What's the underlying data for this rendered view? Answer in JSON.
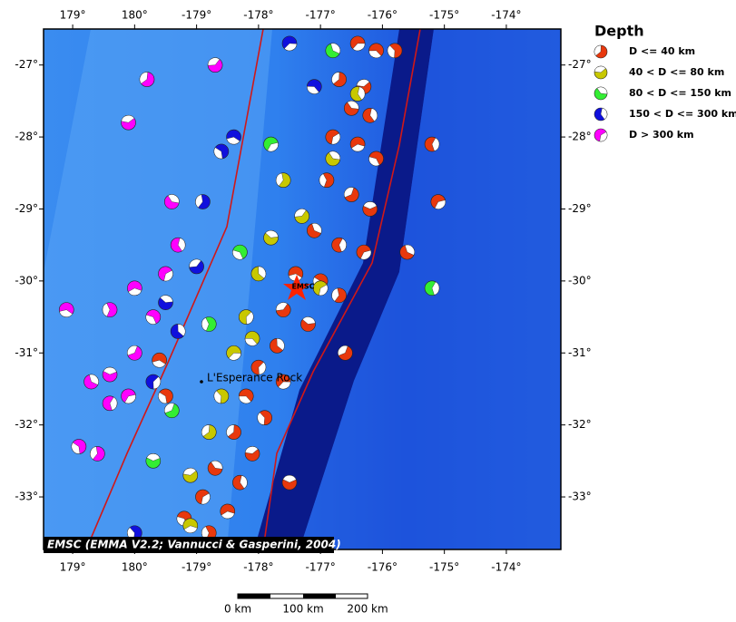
{
  "map": {
    "lonlim": [
      178.53,
      186.88
    ],
    "latlim": [
      -26.5,
      -33.73
    ],
    "lonticks": [
      {
        "value": 179,
        "label": "179°"
      },
      {
        "value": 180,
        "label": "180°"
      },
      {
        "value": 181,
        "label": "-179°"
      },
      {
        "value": 182,
        "label": "-178°"
      },
      {
        "value": 183,
        "label": "-177°"
      },
      {
        "value": 184,
        "label": "-176°"
      },
      {
        "value": 185,
        "label": "-175°"
      },
      {
        "value": 186,
        "label": "-174°"
      }
    ],
    "latticks": [
      {
        "value": -27,
        "label": "-27°"
      },
      {
        "value": -28,
        "label": "-28°"
      },
      {
        "value": -29,
        "label": "-29°"
      },
      {
        "value": -30,
        "label": "-30°"
      },
      {
        "value": -31,
        "label": "-31°"
      },
      {
        "value": -32,
        "label": "-32°"
      },
      {
        "value": -33,
        "label": "-33°"
      }
    ],
    "events": [
      [
        183.6,
        -26.7,
        0
      ],
      [
        183.9,
        -26.8,
        0
      ],
      [
        184.2,
        -26.8,
        0
      ],
      [
        183.3,
        -27.2,
        0
      ],
      [
        183.7,
        -27.3,
        0
      ],
      [
        183.5,
        -27.6,
        0
      ],
      [
        183.8,
        -27.7,
        0
      ],
      [
        183.2,
        -28.0,
        0
      ],
      [
        183.6,
        -28.1,
        0
      ],
      [
        183.9,
        -28.3,
        0
      ],
      [
        183.1,
        -28.6,
        0
      ],
      [
        183.5,
        -28.8,
        0
      ],
      [
        183.8,
        -29.0,
        0
      ],
      [
        182.9,
        -29.3,
        0
      ],
      [
        183.3,
        -29.5,
        0
      ],
      [
        183.7,
        -29.6,
        0
      ],
      [
        182.6,
        -29.9,
        0
      ],
      [
        183.0,
        -30.0,
        0
      ],
      [
        183.3,
        -30.2,
        0
      ],
      [
        182.4,
        -30.4,
        0
      ],
      [
        182.8,
        -30.6,
        0
      ],
      [
        182.3,
        -30.9,
        0
      ],
      [
        182.0,
        -31.2,
        0
      ],
      [
        182.4,
        -31.4,
        0
      ],
      [
        181.8,
        -31.6,
        0
      ],
      [
        182.1,
        -31.9,
        0
      ],
      [
        181.6,
        -32.1,
        0
      ],
      [
        181.9,
        -32.4,
        0
      ],
      [
        181.3,
        -32.6,
        0
      ],
      [
        181.7,
        -32.8,
        0
      ],
      [
        181.1,
        -33.0,
        0
      ],
      [
        181.5,
        -33.2,
        0
      ],
      [
        180.8,
        -33.3,
        0
      ],
      [
        181.2,
        -33.5,
        0
      ],
      [
        183.4,
        -31.0,
        0
      ],
      [
        182.5,
        -32.8,
        0
      ],
      [
        184.4,
        -29.6,
        0
      ],
      [
        184.8,
        -28.1,
        0
      ],
      [
        184.9,
        -28.9,
        0
      ],
      [
        180.4,
        -31.1,
        0
      ],
      [
        180.5,
        -31.6,
        0
      ],
      [
        182.4,
        -28.6,
        1
      ],
      [
        182.7,
        -29.1,
        1
      ],
      [
        182.2,
        -29.4,
        1
      ],
      [
        182.0,
        -29.9,
        1
      ],
      [
        181.8,
        -30.5,
        1
      ],
      [
        181.6,
        -31.0,
        1
      ],
      [
        181.9,
        -30.8,
        1
      ],
      [
        181.4,
        -31.6,
        1
      ],
      [
        181.2,
        -32.1,
        1
      ],
      [
        180.9,
        -32.7,
        1
      ],
      [
        183.2,
        -28.3,
        1
      ],
      [
        183.6,
        -27.4,
        1
      ],
      [
        183.0,
        -30.1,
        1
      ],
      [
        180.9,
        -33.4,
        1
      ],
      [
        181.7,
        -29.6,
        2
      ],
      [
        181.2,
        -30.6,
        2
      ],
      [
        180.6,
        -31.8,
        2
      ],
      [
        180.3,
        -32.5,
        2
      ],
      [
        183.2,
        -26.8,
        2
      ],
      [
        184.8,
        -30.1,
        2
      ],
      [
        182.2,
        -28.1,
        2
      ],
      [
        181.6,
        -28.0,
        3
      ],
      [
        181.4,
        -28.2,
        3
      ],
      [
        181.1,
        -28.9,
        3
      ],
      [
        181.0,
        -29.8,
        3
      ],
      [
        180.5,
        -30.3,
        3
      ],
      [
        180.7,
        -30.7,
        3
      ],
      [
        180.3,
        -31.4,
        3
      ],
      [
        182.5,
        -26.7,
        3
      ],
      [
        182.9,
        -27.3,
        3
      ],
      [
        180.0,
        -33.5,
        3
      ],
      [
        180.2,
        -27.2,
        4
      ],
      [
        179.9,
        -27.8,
        4
      ],
      [
        180.6,
        -28.9,
        4
      ],
      [
        180.7,
        -29.5,
        4
      ],
      [
        180.5,
        -29.9,
        4
      ],
      [
        180.0,
        -30.1,
        4
      ],
      [
        180.3,
        -30.5,
        4
      ],
      [
        179.6,
        -30.4,
        4
      ],
      [
        180.0,
        -31.0,
        4
      ],
      [
        179.6,
        -31.3,
        4
      ],
      [
        179.3,
        -31.4,
        4
      ],
      [
        179.6,
        -31.7,
        4
      ],
      [
        179.9,
        -31.6,
        4
      ],
      [
        178.9,
        -30.4,
        4
      ],
      [
        179.1,
        -32.3,
        4
      ],
      [
        179.4,
        -32.4,
        4
      ],
      [
        181.3,
        -27.0,
        4
      ]
    ]
  },
  "legend": {
    "title": "Depth",
    "items": [
      {
        "label": "D <= 40 km",
        "color": "#e8380d"
      },
      {
        "label": "40 < D <= 80 km",
        "color": "#c8c800"
      },
      {
        "label": "80 < D <= 150 km",
        "color": "#33ee33"
      },
      {
        "label": "150 < D <= 300 km",
        "color": "#1010dd"
      },
      {
        "label": "D > 300 km",
        "color": "#ff00ff"
      }
    ]
  },
  "places": {
    "emsc": "EMSC",
    "rock": "L'Esperance Rock"
  },
  "credit": "EMSC (EMMA V2.2; Vannucci & Gasperini, 2004)",
  "scale_bar": {
    "labels": [
      "0 km",
      "100 km",
      "200 km"
    ]
  }
}
